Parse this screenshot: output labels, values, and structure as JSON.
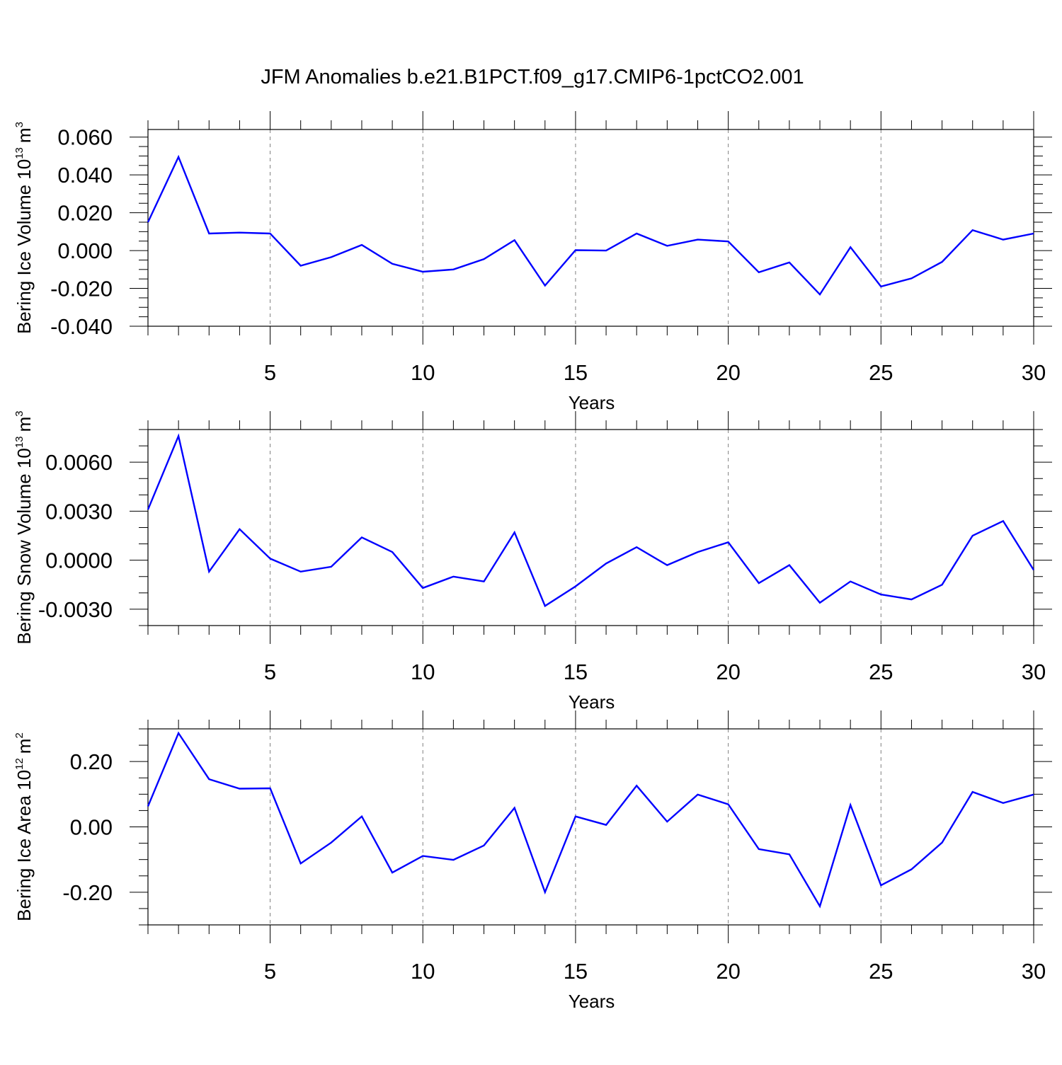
{
  "title": "JFM Anomalies b.e21.B1PCT.f09_g17.CMIP6-1pctCO2.001",
  "colors": {
    "series": "#0000ff",
    "axis": "#000000",
    "grid": "#808080"
  },
  "chart_data": [
    {
      "type": "line",
      "ylabel": "Bering Ice Volume 10",
      "ylabel_exp": "13",
      "ylabel_unit": "m",
      "ylabel_unit_exp": "3",
      "xlabel": "Years",
      "xlim": [
        1,
        30
      ],
      "ylim": [
        -0.04,
        0.064
      ],
      "xticks": [
        5,
        10,
        15,
        20,
        25,
        30
      ],
      "yticks": [
        -0.04,
        -0.02,
        0.0,
        0.02,
        0.04,
        0.06
      ],
      "ytick_labels": [
        "-0.040",
        "-0.020",
        "0.000",
        "0.020",
        "0.040",
        "0.060"
      ],
      "yminor": 0.005,
      "grid": "x-dashed",
      "x": [
        1,
        2,
        3,
        4,
        5,
        6,
        7,
        8,
        9,
        10,
        11,
        12,
        13,
        14,
        15,
        16,
        17,
        18,
        19,
        20,
        21,
        22,
        23,
        24,
        25,
        26,
        27,
        28,
        29,
        30
      ],
      "values": [
        0.015,
        0.0495,
        0.009,
        0.0095,
        0.009,
        -0.008,
        -0.0035,
        0.003,
        -0.007,
        -0.0112,
        -0.01,
        -0.0045,
        0.0055,
        -0.0185,
        0.0002,
        0.0,
        0.009,
        0.0025,
        0.0058,
        0.0048,
        -0.0115,
        -0.0063,
        -0.0232,
        0.0018,
        -0.019,
        -0.0147,
        -0.006,
        0.0108,
        0.0058,
        0.009
      ]
    },
    {
      "type": "line",
      "ylabel": "Bering Snow Volume 10",
      "ylabel_exp": "13",
      "ylabel_unit": "m",
      "ylabel_unit_exp": "3",
      "xlabel": "Years",
      "xlim": [
        1,
        30
      ],
      "ylim": [
        -0.004,
        0.008
      ],
      "xticks": [
        5,
        10,
        15,
        20,
        25,
        30
      ],
      "yticks": [
        -0.003,
        0.0,
        0.003,
        0.006
      ],
      "ytick_labels": [
        "-0.0030",
        "0.0000",
        "0.0030",
        "0.0060"
      ],
      "yminor": 0.001,
      "grid": "x-dashed",
      "x": [
        1,
        2,
        3,
        4,
        5,
        6,
        7,
        8,
        9,
        10,
        11,
        12,
        13,
        14,
        15,
        16,
        17,
        18,
        19,
        20,
        21,
        22,
        23,
        24,
        25,
        26,
        27,
        28,
        29,
        30
      ],
      "values": [
        0.0031,
        0.0076,
        -0.0007,
        0.0019,
        0.0001,
        -0.0007,
        -0.0004,
        0.0014,
        0.0005,
        -0.0017,
        -0.001,
        -0.0013,
        0.0017,
        -0.0028,
        -0.0016,
        -0.0002,
        0.0008,
        -0.0003,
        0.0005,
        0.0011,
        -0.0014,
        -0.0003,
        -0.0026,
        -0.0013,
        -0.0021,
        -0.0024,
        -0.0015,
        0.0015,
        0.0024,
        -0.0006
      ]
    },
    {
      "type": "line",
      "ylabel": "Bering Ice Area 10",
      "ylabel_exp": "12",
      "ylabel_unit": "m",
      "ylabel_unit_exp": "2",
      "xlabel": "Years",
      "xlim": [
        1,
        30
      ],
      "ylim": [
        -0.3,
        0.3
      ],
      "xticks": [
        5,
        10,
        15,
        20,
        25,
        30
      ],
      "yticks": [
        -0.2,
        0.0,
        0.2
      ],
      "ytick_labels": [
        "-0.20",
        "0.00",
        "0.20"
      ],
      "yminor": 0.05,
      "grid": "x-dashed",
      "x": [
        1,
        2,
        3,
        4,
        5,
        6,
        7,
        8,
        9,
        10,
        11,
        12,
        13,
        14,
        15,
        16,
        17,
        18,
        19,
        20,
        21,
        22,
        23,
        24,
        25,
        26,
        27,
        28,
        29,
        30
      ],
      "values": [
        0.063,
        0.287,
        0.146,
        0.117,
        0.118,
        -0.112,
        -0.048,
        0.032,
        -0.14,
        -0.089,
        -0.101,
        -0.057,
        0.058,
        -0.2,
        0.032,
        0.006,
        0.126,
        0.016,
        0.099,
        0.069,
        -0.068,
        -0.084,
        -0.243,
        0.067,
        -0.179,
        -0.13,
        -0.048,
        0.107,
        0.073,
        0.099
      ]
    }
  ]
}
